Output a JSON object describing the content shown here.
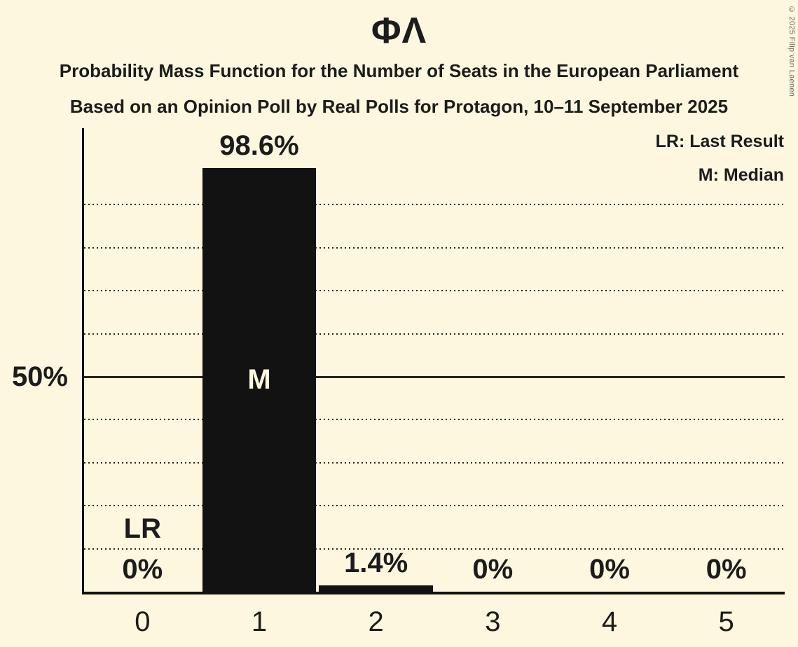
{
  "chart_data": {
    "type": "bar",
    "title": "ΦΛ",
    "subtitle": "Probability Mass Function for the Number of Seats in the European Parliament",
    "sub_subtitle": "Based on an Opinion Poll by Real Polls for Protagon, 10–11 September 2025",
    "legend": [
      "LR: Last Result",
      "M: Median"
    ],
    "legend_position": "top-right",
    "copyright": "© 2025 Filip van Laenen",
    "categories": [
      "0",
      "1",
      "2",
      "3",
      "4",
      "5"
    ],
    "values": [
      0,
      98.6,
      1.4,
      0,
      0,
      0
    ],
    "value_labels": [
      "0%",
      "98.6%",
      "1.4%",
      "0%",
      "0%",
      "0%"
    ],
    "annotations": [
      {
        "category_index": 0,
        "text": "LR",
        "placement": "above-value-label"
      },
      {
        "category_index": 1,
        "text": "M",
        "placement": "inside-bar"
      }
    ],
    "xlabel": "",
    "ylabel": "",
    "ylim": [
      0,
      100
    ],
    "ytick_labels": {
      "50": "50%"
    },
    "gridlines_pct": [
      10,
      20,
      30,
      40,
      50,
      60,
      70,
      80,
      90
    ],
    "solid_gridline_pct": 50,
    "grid": true,
    "colors": {
      "background": "#FCF7DE",
      "bar": "#121212",
      "text": "#1C1C1C",
      "gridline": "#26241F",
      "bar_label": "#FCF7DE",
      "copyright": "#6A6A6A"
    }
  }
}
